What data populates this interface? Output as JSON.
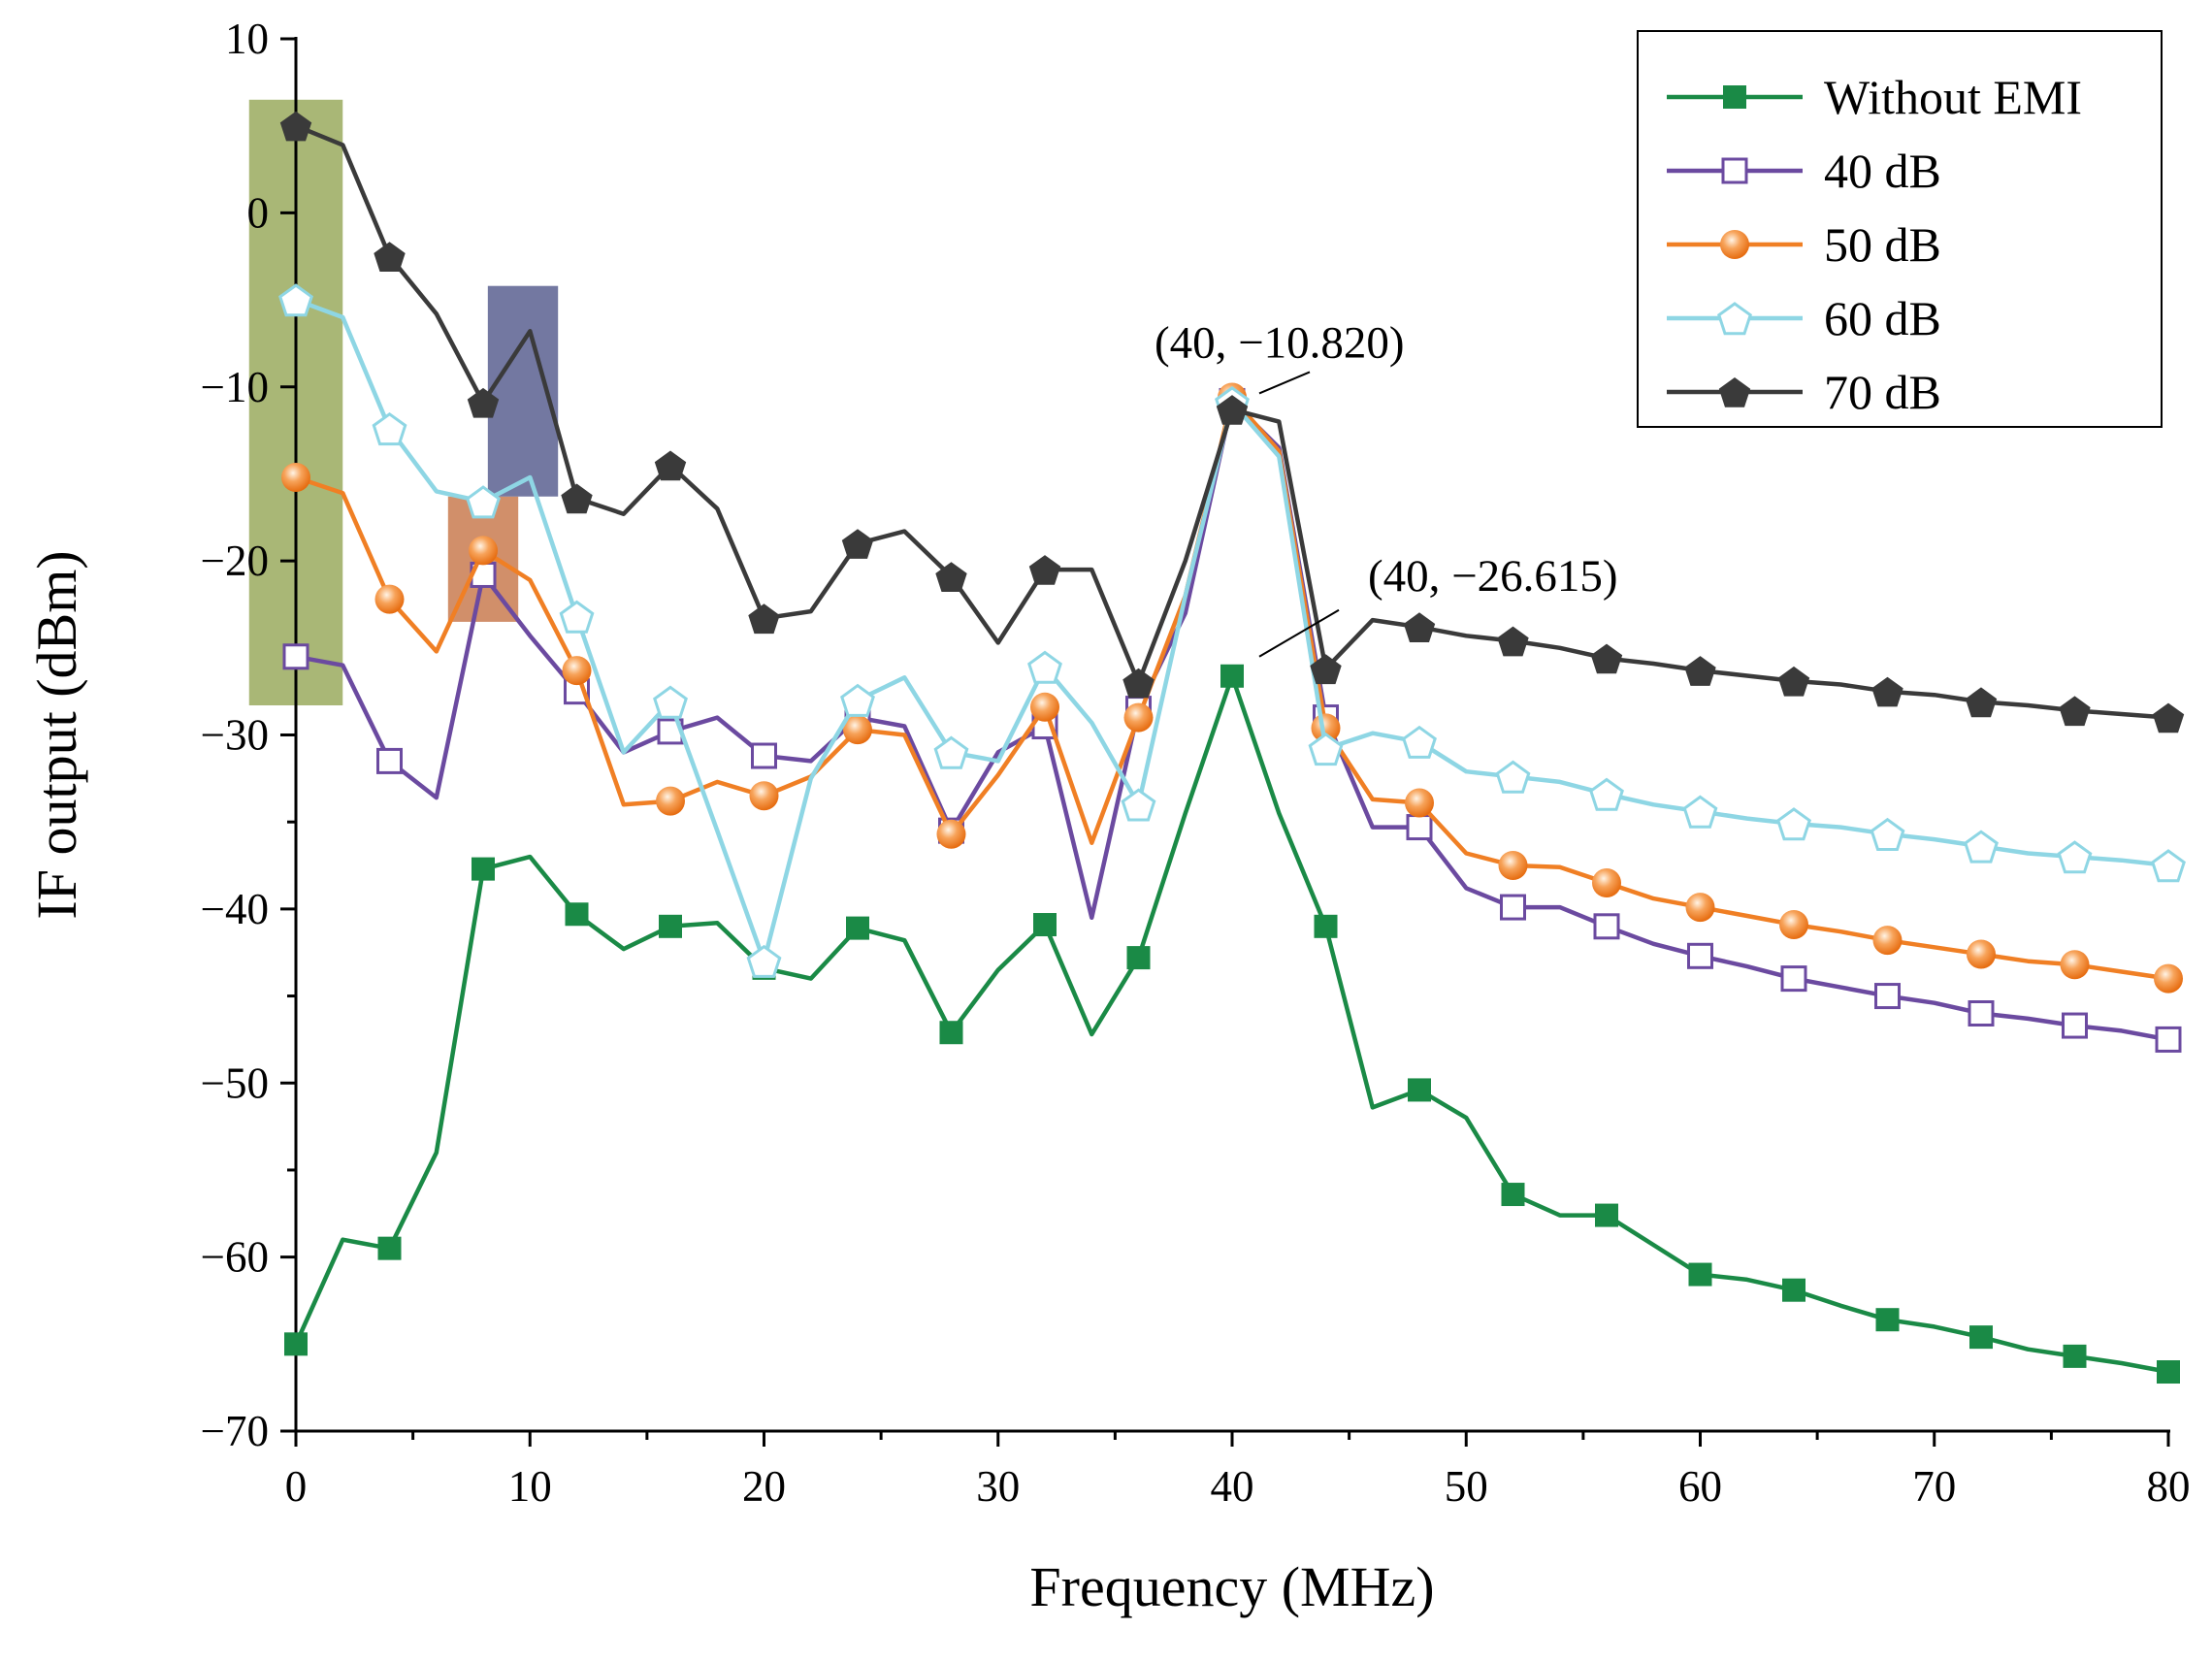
{
  "chart_data": {
    "type": "line",
    "xlabel": "Frequency (MHz)",
    "ylabel": "IF output (dBm)",
    "xlim": [
      0,
      80
    ],
    "ylim": [
      -70,
      10
    ],
    "xticks": [
      0,
      10,
      20,
      30,
      40,
      50,
      60,
      70,
      80
    ],
    "yticks": [
      10,
      0,
      -10,
      -20,
      -30,
      -40,
      -50,
      -60,
      -70
    ],
    "x_tick_labels": [
      "0",
      "10",
      "20",
      "30",
      "40",
      "50",
      "60",
      "70",
      "80"
    ],
    "y_tick_labels": [
      "10",
      "0",
      "−10",
      "−20",
      "−30",
      "−40",
      "−50",
      "−60",
      "−70"
    ],
    "grid": false,
    "legend_position": "top-right",
    "highlights": [
      {
        "x0": -2,
        "x1": 2,
        "y0": -28.3,
        "y1": 6.5,
        "color": "#9aaa5e"
      },
      {
        "x0": 6.5,
        "x1": 9.5,
        "y0": -23.5,
        "y1": -16.3,
        "color": "#c97b50"
      },
      {
        "x0": 8.2,
        "x1": 11.2,
        "y0": -16.3,
        "y1": -4.2,
        "color": "#5a6090"
      }
    ],
    "annotations": [
      {
        "text": "(40, −10.820)",
        "x": 40,
        "y": -10.82
      },
      {
        "text": "(40, −26.615)",
        "x": 40,
        "y": -26.615
      }
    ],
    "series": [
      {
        "name": "Without EMI",
        "color": "#1a8a46",
        "marker": "square-filled",
        "x": [
          0,
          2,
          4,
          6,
          8,
          10,
          12,
          14,
          16,
          18,
          20,
          22,
          24,
          26,
          28,
          30,
          32,
          34,
          36,
          38,
          40,
          42,
          44,
          46,
          48,
          50,
          52,
          54,
          56,
          58,
          60,
          62,
          64,
          66,
          68,
          70,
          72,
          74,
          76,
          78,
          80
        ],
        "y": [
          -65,
          -59,
          -59.5,
          -54,
          -37.7,
          -37,
          -40.3,
          -42.3,
          -41,
          -40.8,
          -43.4,
          -44,
          -41.1,
          -41.8,
          -47.1,
          -43.5,
          -40.9,
          -47.2,
          -42.8,
          -34.5,
          -26.615,
          -34.5,
          -41,
          -51.4,
          -50.4,
          -52,
          -56.4,
          -57.6,
          -57.6,
          -59.3,
          -61,
          -61.3,
          -61.9,
          -62.8,
          -63.6,
          -64,
          -64.6,
          -65.3,
          -65.7,
          -66.1,
          -66.6
        ],
        "marker_x": [
          0,
          4,
          8,
          12,
          16,
          20,
          24,
          28,
          32,
          36,
          40,
          44,
          48,
          52,
          56,
          60,
          64,
          68,
          72,
          76,
          80
        ]
      },
      {
        "name": "40 dB",
        "color": "#6b4aa0",
        "marker": "square-open",
        "x": [
          0,
          2,
          4,
          6,
          8,
          10,
          12,
          14,
          16,
          18,
          20,
          22,
          24,
          26,
          28,
          30,
          32,
          34,
          36,
          38,
          40,
          42,
          44,
          46,
          48,
          50,
          52,
          54,
          56,
          58,
          60,
          62,
          64,
          66,
          68,
          70,
          72,
          74,
          76,
          78,
          80
        ],
        "y": [
          -25.5,
          -26,
          -31.5,
          -33.6,
          -20.8,
          -24.3,
          -27.5,
          -31,
          -29.8,
          -29,
          -31.2,
          -31.5,
          -29,
          -29.5,
          -35.5,
          -31,
          -29.5,
          -40.5,
          -28.5,
          -23,
          -10.82,
          -13.5,
          -29,
          -35.3,
          -35.3,
          -38.8,
          -39.9,
          -39.9,
          -41,
          -42,
          -42.7,
          -43.3,
          -44,
          -44.5,
          -45,
          -45.4,
          -46,
          -46.3,
          -46.7,
          -47,
          -47.5
        ],
        "marker_x": [
          0,
          4,
          8,
          12,
          16,
          20,
          24,
          28,
          32,
          36,
          40,
          44,
          48,
          52,
          56,
          60,
          64,
          68,
          72,
          76,
          80
        ]
      },
      {
        "name": "50 dB",
        "color": "#f07f24",
        "marker": "circle-filled",
        "x": [
          0,
          2,
          4,
          6,
          8,
          10,
          12,
          14,
          16,
          18,
          20,
          22,
          24,
          26,
          28,
          30,
          32,
          34,
          36,
          38,
          40,
          42,
          44,
          46,
          48,
          50,
          52,
          54,
          56,
          58,
          60,
          62,
          64,
          66,
          68,
          70,
          72,
          74,
          76,
          78,
          80
        ],
        "y": [
          -15.2,
          -16.1,
          -22.2,
          -25.2,
          -19.4,
          -21.1,
          -26.3,
          -34,
          -33.8,
          -32.7,
          -33.5,
          -32.4,
          -29.7,
          -30,
          -35.7,
          -32.3,
          -28.4,
          -36.2,
          -29,
          -22,
          -10.6,
          -13.7,
          -29.6,
          -33.7,
          -33.9,
          -36.8,
          -37.5,
          -37.6,
          -38.5,
          -39.4,
          -39.9,
          -40.4,
          -40.9,
          -41.3,
          -41.8,
          -42.2,
          -42.6,
          -43,
          -43.2,
          -43.6,
          -44
        ],
        "marker_x": [
          0,
          4,
          8,
          12,
          16,
          20,
          24,
          28,
          32,
          36,
          40,
          44,
          48,
          52,
          56,
          60,
          64,
          68,
          72,
          76,
          80
        ]
      },
      {
        "name": "60 dB",
        "color": "#8ed6e4",
        "marker": "pentagon-open",
        "x": [
          0,
          2,
          4,
          6,
          8,
          10,
          12,
          14,
          16,
          18,
          20,
          22,
          24,
          26,
          28,
          30,
          32,
          34,
          36,
          38,
          40,
          42,
          44,
          46,
          48,
          50,
          52,
          54,
          56,
          58,
          60,
          62,
          64,
          66,
          68,
          70,
          72,
          74,
          76,
          78,
          80
        ],
        "y": [
          -5,
          -6,
          -12.4,
          -16,
          -16.6,
          -15.2,
          -23.2,
          -31,
          -28.1,
          -35.5,
          -43,
          -32.5,
          -28,
          -26.7,
          -31,
          -31.5,
          -26.1,
          -29.3,
          -34,
          -22,
          -10.9,
          -14,
          -30.8,
          -29.9,
          -30.4,
          -32.1,
          -32.4,
          -32.7,
          -33.4,
          -34,
          -34.4,
          -34.8,
          -35.1,
          -35.3,
          -35.7,
          -36,
          -36.4,
          -36.8,
          -37,
          -37.2,
          -37.5
        ],
        "marker_x": [
          0,
          4,
          8,
          12,
          16,
          20,
          24,
          28,
          32,
          36,
          40,
          44,
          48,
          52,
          56,
          60,
          64,
          68,
          72,
          76,
          80
        ]
      },
      {
        "name": "70 dB",
        "color": "#3a3a3a",
        "marker": "pentagon-filled",
        "x": [
          0,
          2,
          4,
          6,
          8,
          10,
          12,
          14,
          16,
          18,
          20,
          22,
          24,
          26,
          28,
          30,
          32,
          34,
          36,
          38,
          40,
          42,
          44,
          46,
          48,
          50,
          52,
          54,
          56,
          58,
          60,
          62,
          64,
          66,
          68,
          70,
          72,
          74,
          76,
          78,
          80
        ],
        "y": [
          5,
          3.9,
          -2.5,
          -5.8,
          -10.9,
          -6.8,
          -16.4,
          -17.3,
          -14.5,
          -17,
          -23.3,
          -22.9,
          -19,
          -18.3,
          -20.9,
          -24.7,
          -20.5,
          -20.5,
          -27,
          -20,
          -11.3,
          -12,
          -26.2,
          -23.4,
          -23.8,
          -24.3,
          -24.6,
          -25,
          -25.6,
          -25.9,
          -26.3,
          -26.6,
          -26.9,
          -27.1,
          -27.5,
          -27.7,
          -28.1,
          -28.3,
          -28.6,
          -28.8,
          -29
        ],
        "marker_x": [
          0,
          4,
          8,
          12,
          16,
          20,
          24,
          28,
          32,
          36,
          40,
          44,
          48,
          52,
          56,
          60,
          64,
          68,
          72,
          76,
          80
        ]
      }
    ]
  }
}
